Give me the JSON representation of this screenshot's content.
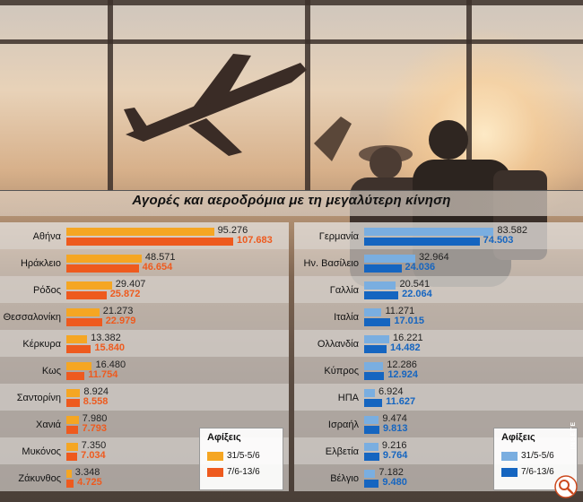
{
  "credit": "INSETE",
  "chart_data": [
    {
      "type": "bar",
      "orientation": "horizontal",
      "title": "Αγορές και αεροδρόμια με τη μεγαλύτερη κίνηση",
      "categories": [
        "Αθήνα",
        "Ηράκλειο",
        "Ρόδος",
        "Θεσσαλονίκη",
        "Κέρκυρα",
        "Κως",
        "Σαντορίνη",
        "Χανιά",
        "Μυκόνος",
        "Ζάκυνθος"
      ],
      "series": [
        {
          "name": "31/5-5/6",
          "color": "#f5a623",
          "values": [
            95276,
            48571,
            29407,
            21273,
            13382,
            16480,
            8924,
            7980,
            7350,
            3348
          ],
          "labels": [
            "95.276",
            "48.571",
            "29.407",
            "21.273",
            "13.382",
            "16.480",
            "8.924",
            "7.980",
            "7.350",
            "3.348"
          ]
        },
        {
          "name": "7/6-13/6",
          "color": "#ee5a1e",
          "values": [
            107683,
            46654,
            25872,
            22979,
            15840,
            11754,
            8558,
            7793,
            7034,
            4725
          ],
          "labels": [
            "107.683",
            "46.654",
            "25.872",
            "22.979",
            "15.840",
            "11.754",
            "8.558",
            "7.793",
            "7.034",
            "4.725"
          ]
        }
      ],
      "xlim": [
        0,
        110000
      ],
      "legend": {
        "title": "Αφίξεις",
        "placement": "bottom-right"
      }
    },
    {
      "type": "bar",
      "orientation": "horizontal",
      "categories": [
        "Γερμανία",
        "Ην. Βασίλειο",
        "Γαλλία",
        "Ιταλία",
        "Ολλανδία",
        "Κύπρος",
        "ΗΠΑ",
        "Ισραήλ",
        "Ελβετία",
        "Βέλγιο"
      ],
      "series": [
        {
          "name": "31/5-5/6",
          "color": "#7aaee0",
          "values": [
            83582,
            32964,
            20541,
            11271,
            16221,
            12286,
            6924,
            9474,
            9216,
            7182
          ],
          "labels": [
            "83.582",
            "32.964",
            "20.541",
            "11.271",
            "16.221",
            "12.286",
            "6.924",
            "9.474",
            "9.216",
            "7.182"
          ]
        },
        {
          "name": "7/6-13/6",
          "color": "#1565c0",
          "values": [
            74503,
            24036,
            22064,
            17015,
            14482,
            12924,
            11627,
            9813,
            9764,
            9480
          ],
          "labels": [
            "74.503",
            "24.036",
            "22.064",
            "17.015",
            "14.482",
            "12.924",
            "11.627",
            "9.813",
            "9.764",
            "9.480"
          ]
        }
      ],
      "xlim": [
        0,
        110000
      ],
      "legend": {
        "title": "Αφίξεις",
        "placement": "bottom-right"
      }
    }
  ]
}
